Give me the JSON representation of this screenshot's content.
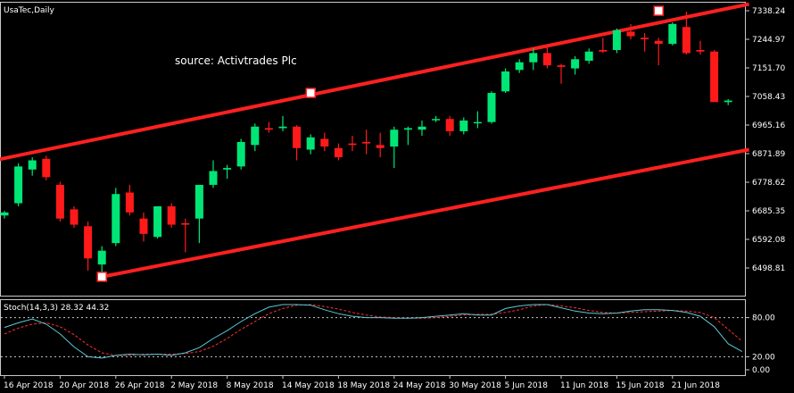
{
  "chart_data": {
    "type": "candlestick",
    "symbol_label": "UsaTec,Daily",
    "annotation": "source: Activtrades Plc",
    "y_ticks": [
      "7338.24",
      "7244.97",
      "7151.70",
      "7058.43",
      "6965.16",
      "6871.89",
      "6778.62",
      "6685.35",
      "6592.08",
      "6498.81"
    ],
    "x_ticks": [
      {
        "label": "16 Apr 2018",
        "index": 0
      },
      {
        "label": "20 Apr 2018",
        "index": 4
      },
      {
        "label": "26 Apr 2018",
        "index": 8
      },
      {
        "label": "2 May 2018",
        "index": 12
      },
      {
        "label": "8 May 2018",
        "index": 16
      },
      {
        "label": "14 May 2018",
        "index": 20
      },
      {
        "label": "18 May 2018",
        "index": 24
      },
      {
        "label": "24 May 2018",
        "index": 28
      },
      {
        "label": "30 May 2018",
        "index": 32
      },
      {
        "label": "5 Jun 2018",
        "index": 36
      },
      {
        "label": "11 Jun 2018",
        "index": 40
      },
      {
        "label": "15 Jun 2018",
        "index": 44
      },
      {
        "label": "21 Jun 2018",
        "index": 48
      }
    ],
    "candles": [
      {
        "o": 6670,
        "h": 6685,
        "l": 6660,
        "c": 6680
      },
      {
        "o": 6710,
        "h": 6840,
        "l": 6700,
        "c": 6830
      },
      {
        "o": 6820,
        "h": 6860,
        "l": 6800,
        "c": 6850
      },
      {
        "o": 6855,
        "h": 6865,
        "l": 6785,
        "c": 6795
      },
      {
        "o": 6770,
        "h": 6780,
        "l": 6650,
        "c": 6660
      },
      {
        "o": 6690,
        "h": 6700,
        "l": 6630,
        "c": 6640
      },
      {
        "o": 6635,
        "h": 6650,
        "l": 6490,
        "c": 6530
      },
      {
        "o": 6510,
        "h": 6570,
        "l": 6480,
        "c": 6555
      },
      {
        "o": 6580,
        "h": 6760,
        "l": 6570,
        "c": 6740
      },
      {
        "o": 6745,
        "h": 6770,
        "l": 6670,
        "c": 6680
      },
      {
        "o": 6660,
        "h": 6680,
        "l": 6585,
        "c": 6610
      },
      {
        "o": 6600,
        "h": 6700,
        "l": 6595,
        "c": 6700
      },
      {
        "o": 6700,
        "h": 6710,
        "l": 6630,
        "c": 6640
      },
      {
        "o": 6645,
        "h": 6660,
        "l": 6550,
        "c": 6640
      },
      {
        "o": 6660,
        "h": 6770,
        "l": 6580,
        "c": 6770
      },
      {
        "o": 6770,
        "h": 6850,
        "l": 6760,
        "c": 6815
      },
      {
        "o": 6820,
        "h": 6835,
        "l": 6790,
        "c": 6825
      },
      {
        "o": 6830,
        "h": 6920,
        "l": 6820,
        "c": 6910
      },
      {
        "o": 6900,
        "h": 6970,
        "l": 6880,
        "c": 6960
      },
      {
        "o": 6955,
        "h": 6975,
        "l": 6940,
        "c": 6950
      },
      {
        "o": 6955,
        "h": 6995,
        "l": 6945,
        "c": 6960
      },
      {
        "o": 6960,
        "h": 6965,
        "l": 6850,
        "c": 6890
      },
      {
        "o": 6885,
        "h": 6935,
        "l": 6870,
        "c": 6925
      },
      {
        "o": 6920,
        "h": 6940,
        "l": 6880,
        "c": 6895
      },
      {
        "o": 6890,
        "h": 6905,
        "l": 6850,
        "c": 6860
      },
      {
        "o": 6905,
        "h": 6930,
        "l": 6880,
        "c": 6900
      },
      {
        "o": 6910,
        "h": 6950,
        "l": 6870,
        "c": 6905
      },
      {
        "o": 6900,
        "h": 6940,
        "l": 6860,
        "c": 6890
      },
      {
        "o": 6895,
        "h": 6960,
        "l": 6825,
        "c": 6950
      },
      {
        "o": 6950,
        "h": 6960,
        "l": 6900,
        "c": 6955
      },
      {
        "o": 6950,
        "h": 6980,
        "l": 6930,
        "c": 6960
      },
      {
        "o": 6985,
        "h": 6995,
        "l": 6975,
        "c": 6985
      },
      {
        "o": 6985,
        "h": 6995,
        "l": 6930,
        "c": 6945
      },
      {
        "o": 6945,
        "h": 6990,
        "l": 6935,
        "c": 6980
      },
      {
        "o": 6975,
        "h": 7010,
        "l": 6955,
        "c": 6975
      },
      {
        "o": 6975,
        "h": 7075,
        "l": 6970,
        "c": 7070
      },
      {
        "o": 7075,
        "h": 7150,
        "l": 7070,
        "c": 7140
      },
      {
        "o": 7145,
        "h": 7180,
        "l": 7135,
        "c": 7170
      },
      {
        "o": 7170,
        "h": 7215,
        "l": 7145,
        "c": 7200
      },
      {
        "o": 7200,
        "h": 7225,
        "l": 7150,
        "c": 7160
      },
      {
        "o": 7160,
        "h": 7165,
        "l": 7100,
        "c": 7155
      },
      {
        "o": 7150,
        "h": 7190,
        "l": 7130,
        "c": 7180
      },
      {
        "o": 7175,
        "h": 7215,
        "l": 7165,
        "c": 7205
      },
      {
        "o": 7210,
        "h": 7250,
        "l": 7200,
        "c": 7205
      },
      {
        "o": 7210,
        "h": 7280,
        "l": 7200,
        "c": 7275
      },
      {
        "o": 7270,
        "h": 7295,
        "l": 7245,
        "c": 7255
      },
      {
        "o": 7250,
        "h": 7265,
        "l": 7205,
        "c": 7245
      },
      {
        "o": 7240,
        "h": 7250,
        "l": 7160,
        "c": 7230
      },
      {
        "o": 7230,
        "h": 7300,
        "l": 7225,
        "c": 7295
      },
      {
        "o": 7285,
        "h": 7335,
        "l": 7195,
        "c": 7200
      },
      {
        "o": 7210,
        "h": 7240,
        "l": 7195,
        "c": 7205
      },
      {
        "o": 7205,
        "h": 7210,
        "l": 7045,
        "c": 7040
      },
      {
        "o": 7040,
        "h": 7050,
        "l": 7030,
        "c": 7045
      }
    ],
    "channel_upper": {
      "from": {
        "index": -0.5,
        "value": 6852
      },
      "to": {
        "index": 53.5,
        "value": 7360
      }
    },
    "channel_lower": {
      "from": {
        "index": 7,
        "value": 6470
      },
      "to": {
        "index": 53.5,
        "value": 6885
      }
    },
    "channel_markers": [
      {
        "index": 7,
        "value": 6470
      },
      {
        "index": 22,
        "value": 7070
      },
      {
        "index": 47,
        "value": 7338
      }
    ],
    "y_range": [
      6472,
      7350
    ],
    "colors": {
      "up": "#00e676",
      "down": "#ff1a1a",
      "line": "#ff2020",
      "k": "#5bc8d8",
      "d": "#ff3030"
    }
  },
  "stoch": {
    "label": "Stoch(14,3,3) 28.32 44.32",
    "levels": [
      "80.00",
      "20.00",
      "0.00"
    ],
    "level_values": [
      80,
      20,
      0
    ],
    "y_range": [
      0,
      100
    ],
    "k": [
      65,
      72,
      78,
      70,
      55,
      35,
      20,
      18,
      22,
      24,
      23,
      24,
      22,
      26,
      34,
      48,
      60,
      74,
      86,
      96,
      100,
      100,
      99,
      92,
      86,
      82,
      80,
      80,
      79,
      79,
      80,
      82,
      84,
      86,
      84,
      84,
      94,
      98,
      100,
      100,
      95,
      90,
      87,
      86,
      87,
      90,
      92,
      92,
      91,
      88,
      82,
      66,
      40,
      28
    ],
    "d": [
      55,
      64,
      70,
      72,
      66,
      54,
      38,
      26,
      22,
      22,
      24,
      24,
      24,
      25,
      28,
      36,
      48,
      62,
      74,
      86,
      94,
      99,
      100,
      97,
      93,
      88,
      84,
      81,
      80,
      79,
      79,
      80,
      82,
      84,
      85,
      85,
      88,
      92,
      98,
      100,
      98,
      95,
      91,
      88,
      87,
      88,
      89,
      90,
      91,
      90,
      88,
      80,
      62,
      44
    ]
  }
}
